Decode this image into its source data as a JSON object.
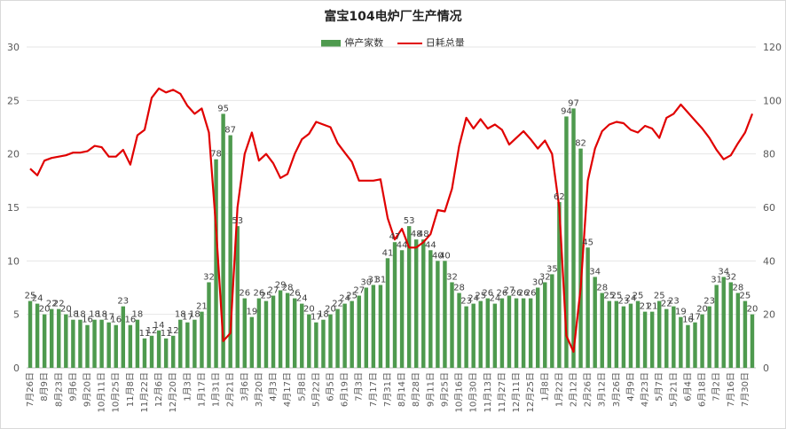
{
  "chart_data": {
    "type": "bar+line",
    "title": "富宝104电炉厂生产情况",
    "legend": [
      "停产家数",
      "日耗总量"
    ],
    "colors": {
      "bar": "#4e9a4e",
      "line": "#e00000"
    },
    "y_left": {
      "min": 0,
      "max": 30,
      "ticks": [
        0,
        5,
        10,
        15,
        20,
        25,
        30
      ]
    },
    "y_right": {
      "min": 0,
      "max": 120,
      "ticks": [
        0,
        20,
        40,
        60,
        80,
        100,
        120
      ]
    },
    "x_tick_labels": [
      "7月26日",
      "8月9日",
      "8月23日",
      "9月6日",
      "9月20日",
      "10月11日",
      "10月25日",
      "11月8日",
      "11月22日",
      "12月6日",
      "12月20日",
      "1月3日",
      "1月17日",
      "1月31日",
      "2月21日",
      "3月6日",
      "3月20日",
      "4月3日",
      "4月17日",
      "5月8日",
      "5月22日",
      "6月5日",
      "6月19日",
      "7月3日",
      "7月17日",
      "7月31日",
      "8月14日",
      "8月28日",
      "9月11日",
      "9月25日",
      "10月16日",
      "10月30日",
      "11月13日",
      "11月27日",
      "12月11日",
      "12月25日",
      "1月8日",
      "1月22日",
      "2月12日",
      "2月26日",
      "3月12日",
      "3月26日",
      "4月9日",
      "4月23日",
      "5月7日",
      "5月21日",
      "6月4日",
      "6月18日",
      "7月2日",
      "7月16日",
      "7月30日"
    ],
    "bars": [
      25,
      24,
      20,
      22,
      22,
      20,
      18,
      18,
      16,
      18,
      18,
      17,
      16,
      23,
      16,
      18,
      11,
      12,
      14,
      11,
      12,
      18,
      17,
      18,
      21,
      32,
      78,
      95,
      87,
      53,
      26,
      19,
      26,
      25,
      27,
      29,
      28,
      26,
      24,
      20,
      17,
      18,
      20,
      22,
      24,
      25,
      27,
      30,
      31,
      31,
      41,
      47,
      44,
      53,
      48,
      48,
      44,
      40,
      40,
      32,
      28,
      23,
      24,
      25,
      26,
      24,
      26,
      27,
      26,
      26,
      26,
      30,
      32,
      35,
      62,
      94,
      97,
      82,
      45,
      34,
      28,
      25,
      25,
      23,
      24,
      25,
      21,
      21,
      25,
      22,
      23,
      19,
      16,
      17,
      20,
      23,
      31,
      34,
      32,
      28,
      25,
      20
    ],
    "line": [
      74.5,
      72,
      77.5,
      78.5,
      79,
      79.5,
      80.5,
      80.5,
      81,
      83,
      82.5,
      79,
      79,
      81.5,
      76,
      87,
      89,
      101,
      104.5,
      103,
      104,
      102.5,
      98,
      95,
      97,
      88,
      52,
      10,
      13,
      60,
      80,
      88,
      77.5,
      80,
      76.5,
      71,
      72.5,
      80,
      85.5,
      87.5,
      92,
      91,
      90,
      84,
      80.5,
      77,
      70,
      70,
      70,
      70.5,
      56,
      48,
      52,
      45,
      45,
      47,
      50,
      59,
      58.5,
      67,
      83,
      93.5,
      89.5,
      93,
      89.5,
      91,
      89,
      83.5,
      86,
      88.5,
      85.5,
      82,
      85,
      80,
      60,
      12,
      6,
      30,
      70,
      82,
      88.5,
      91,
      92,
      91.5,
      89,
      88,
      90.5,
      89.5,
      86,
      93.5,
      95,
      98.5,
      95.5,
      92.5,
      89.5,
      86,
      81.5,
      78,
      79.5,
      84,
      88,
      95
    ]
  }
}
